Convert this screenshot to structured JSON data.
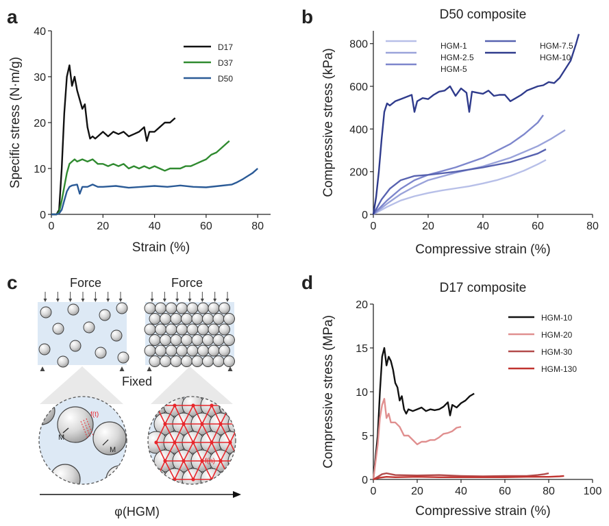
{
  "panels": {
    "a": "a",
    "b": "b",
    "c": "c",
    "d": "d"
  },
  "schematic": {
    "force_left": "Force",
    "force_right": "Force",
    "fixed": "Fixed",
    "axis": "φ(HGM)",
    "label_f_t": "f(t)",
    "label_f_n": "f(n)",
    "label_m1": "M",
    "label_m2": "M",
    "fill_color": "#dde9f5",
    "network_color": "#e8262b"
  },
  "chart_data": [
    {
      "id": "a",
      "type": "line",
      "title": "",
      "xlabel": "Strain (%)",
      "ylabel": "Specific stress (N·m/g)",
      "xlim": [
        0,
        85
      ],
      "ylim": [
        0,
        40
      ],
      "xticks": [
        0,
        20,
        40,
        60,
        80
      ],
      "yticks": [
        0,
        10,
        20,
        30,
        40
      ],
      "legend": "top-right",
      "grid": false,
      "series": [
        {
          "name": "D17",
          "color": "#111111",
          "x": [
            0,
            2,
            3,
            4,
            5,
            6,
            7,
            8,
            9,
            10,
            11,
            12,
            13,
            14,
            15,
            16,
            17,
            18,
            20,
            22,
            24,
            26,
            28,
            30,
            32,
            34,
            36,
            37,
            38,
            40,
            42,
            44,
            46,
            48
          ],
          "y": [
            0,
            0,
            1,
            10,
            22,
            30,
            32.5,
            28,
            30,
            27,
            25,
            23,
            24,
            19,
            16.5,
            17,
            16.5,
            17,
            18,
            17,
            18,
            17.5,
            18,
            17,
            17.5,
            18,
            19,
            16,
            18,
            18,
            19,
            20,
            20,
            21
          ]
        },
        {
          "name": "D37",
          "color": "#2f8a2f",
          "x": [
            0,
            2,
            3,
            4,
            5,
            6,
            7,
            8,
            9,
            10,
            12,
            14,
            16,
            18,
            20,
            22,
            24,
            26,
            28,
            30,
            32,
            34,
            36,
            38,
            40,
            42,
            44,
            46,
            48,
            50,
            52,
            54,
            56,
            58,
            60,
            62,
            64,
            66,
            68,
            69
          ],
          "y": [
            0,
            0,
            0.5,
            3,
            6,
            9,
            11,
            11.5,
            12,
            11.5,
            12,
            11.5,
            12,
            11,
            11,
            10.5,
            11,
            10.5,
            11,
            10,
            10.5,
            10,
            10.5,
            10,
            10.5,
            10,
            9.5,
            10,
            10,
            10,
            10.5,
            10.5,
            11,
            11.5,
            12,
            13,
            13.5,
            14.5,
            15.5,
            16
          ]
        },
        {
          "name": "D50",
          "color": "#2a5a96",
          "x": [
            0,
            2,
            3,
            4,
            5,
            6,
            7,
            8,
            10,
            11,
            12,
            14,
            16,
            18,
            20,
            25,
            30,
            35,
            40,
            45,
            50,
            55,
            60,
            65,
            70,
            72,
            74,
            76,
            78,
            80
          ],
          "y": [
            0,
            0,
            0.2,
            1,
            3,
            5,
            6,
            6.3,
            6.5,
            4.5,
            6,
            6,
            6.5,
            6,
            6,
            6.2,
            5.8,
            6,
            6.2,
            6,
            6.3,
            6,
            5.9,
            6.2,
            6.5,
            7,
            7.6,
            8.3,
            9,
            10
          ]
        }
      ]
    },
    {
      "id": "b",
      "type": "line",
      "title": "D50 composite",
      "xlabel": "Compressive strain (%)",
      "ylabel": "Compressive stress (kPa)",
      "xlim": [
        0,
        80
      ],
      "ylim": [
        0,
        860
      ],
      "xticks": [
        0,
        20,
        40,
        60,
        80
      ],
      "yticks": [
        0,
        200,
        400,
        600,
        800
      ],
      "legend": "top",
      "grid": false,
      "series": [
        {
          "name": "HGM-1",
          "color": "#b7bfe8",
          "x": [
            0,
            5,
            10,
            15,
            20,
            25,
            30,
            35,
            40,
            45,
            50,
            55,
            60,
            63
          ],
          "y": [
            0,
            35,
            65,
            85,
            100,
            112,
            122,
            132,
            145,
            160,
            180,
            205,
            235,
            255
          ]
        },
        {
          "name": "HGM-2.5",
          "color": "#9aa3da",
          "x": [
            0,
            5,
            10,
            15,
            20,
            30,
            40,
            50,
            60,
            65,
            70
          ],
          "y": [
            0,
            50,
            95,
            130,
            160,
            195,
            225,
            265,
            320,
            355,
            395
          ]
        },
        {
          "name": "HGM-5",
          "color": "#7d86cc",
          "x": [
            0,
            5,
            10,
            15,
            20,
            30,
            40,
            50,
            55,
            60,
            62
          ],
          "y": [
            0,
            65,
            120,
            160,
            185,
            220,
            265,
            330,
            375,
            430,
            465
          ]
        },
        {
          "name": "HGM-7.5",
          "color": "#5762b0",
          "x": [
            0,
            3,
            6,
            10,
            15,
            20,
            30,
            40,
            50,
            60,
            63
          ],
          "y": [
            0,
            70,
            120,
            160,
            180,
            185,
            200,
            220,
            245,
            285,
            305
          ]
        },
        {
          "name": "HGM-10",
          "color": "#2f3b8c",
          "x": [
            0,
            1,
            2,
            3,
            4,
            5,
            6,
            8,
            10,
            12,
            14,
            15,
            16,
            18,
            20,
            22,
            24,
            26,
            28,
            30,
            32,
            34,
            35,
            36,
            38,
            40,
            42,
            44,
            46,
            48,
            50,
            52,
            54,
            56,
            58,
            60,
            62,
            64,
            66,
            68,
            70,
            72,
            74,
            75
          ],
          "y": [
            0,
            80,
            200,
            350,
            480,
            520,
            510,
            530,
            540,
            550,
            560,
            480,
            530,
            545,
            540,
            560,
            575,
            580,
            600,
            555,
            590,
            570,
            480,
            575,
            570,
            565,
            580,
            555,
            560,
            560,
            530,
            545,
            560,
            580,
            590,
            600,
            605,
            620,
            615,
            640,
            680,
            720,
            800,
            845
          ]
        }
      ]
    },
    {
      "id": "d",
      "type": "line",
      "title": "D17 composite",
      "xlabel": "Compressive strain (%)",
      "ylabel": "Compressive stress (MPa)",
      "xlim": [
        0,
        100
      ],
      "ylim": [
        0,
        20
      ],
      "xticks": [
        0,
        20,
        40,
        60,
        80,
        100
      ],
      "yticks": [
        0,
        5,
        10,
        15,
        20
      ],
      "legend": "top-right",
      "grid": false,
      "series": [
        {
          "name": "HGM-10",
          "color": "#111111",
          "x": [
            0,
            2,
            3,
            4,
            5,
            6,
            7,
            8,
            9,
            10,
            11,
            12,
            13,
            14,
            15,
            16,
            18,
            20,
            22,
            24,
            26,
            28,
            30,
            32,
            34,
            35,
            36,
            38,
            40,
            42,
            44,
            46
          ],
          "y": [
            0,
            5,
            10,
            14,
            15,
            13,
            14,
            13.5,
            12.5,
            11,
            10.5,
            9,
            9.5,
            8,
            7.5,
            8,
            7.8,
            8,
            8.2,
            7.8,
            8,
            7.9,
            8,
            8.3,
            8.8,
            7.3,
            8.5,
            8.2,
            8.7,
            9,
            9.5,
            9.8
          ]
        },
        {
          "name": "HGM-20",
          "color": "#e08f8f",
          "x": [
            0,
            2,
            3,
            4,
            5,
            6,
            7,
            8,
            10,
            12,
            14,
            16,
            18,
            20,
            22,
            24,
            26,
            28,
            30,
            32,
            34,
            36,
            38,
            40
          ],
          "y": [
            0,
            4,
            7,
            8.5,
            9.2,
            7,
            7.5,
            6.5,
            6.5,
            6,
            5,
            5,
            4.5,
            4,
            4.3,
            4.3,
            4.5,
            4.5,
            4.8,
            5.2,
            5.3,
            5.5,
            5.9,
            6
          ]
        },
        {
          "name": "HGM-30",
          "color": "#b24a4a",
          "x": [
            0,
            2,
            4,
            6,
            10,
            20,
            30,
            40,
            50,
            60,
            70,
            75,
            78,
            80
          ],
          "y": [
            0,
            0.3,
            0.6,
            0.7,
            0.5,
            0.45,
            0.5,
            0.4,
            0.35,
            0.4,
            0.4,
            0.5,
            0.6,
            0.7
          ]
        },
        {
          "name": "HGM-130",
          "color": "#c0332f",
          "x": [
            0,
            3,
            6,
            10,
            20,
            30,
            40,
            50,
            60,
            70,
            80,
            85,
            87
          ],
          "y": [
            0,
            0.2,
            0.3,
            0.25,
            0.3,
            0.25,
            0.25,
            0.25,
            0.25,
            0.3,
            0.3,
            0.35,
            0.4
          ]
        }
      ]
    }
  ]
}
